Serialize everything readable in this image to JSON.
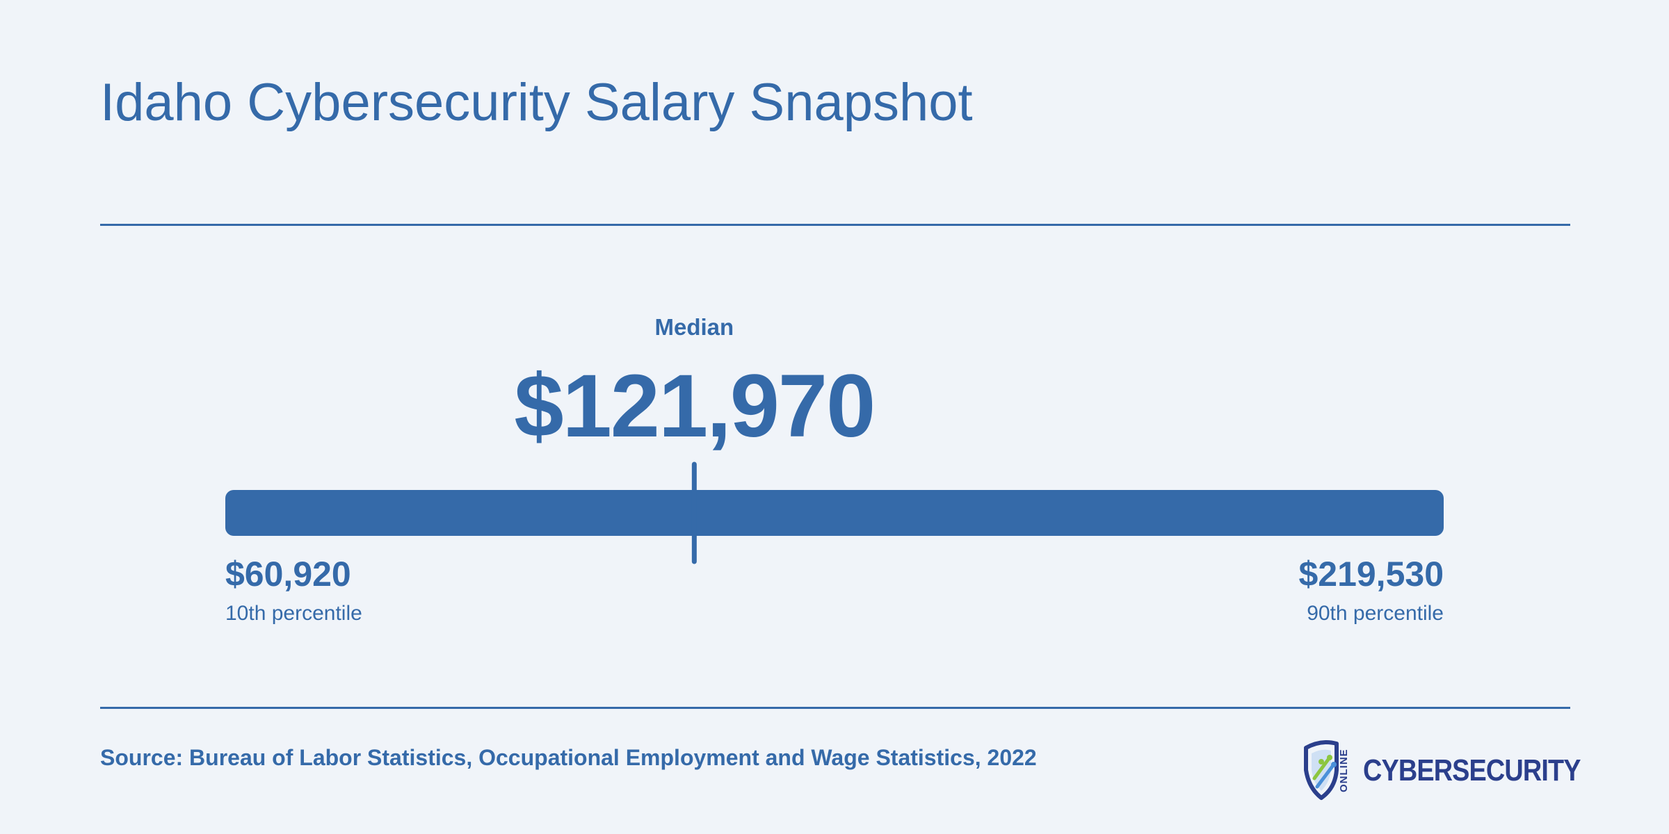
{
  "header": {
    "title": "Idaho Cybersecurity Salary Snapshot"
  },
  "chart_data": {
    "type": "range",
    "title": "Idaho Cybersecurity Salary Snapshot",
    "min": {
      "value": 60920,
      "label": "$60,920",
      "caption": "10th percentile"
    },
    "median": {
      "value": 121970,
      "label": "$121,970",
      "caption": "Median"
    },
    "max": {
      "value": 219530,
      "label": "$219,530",
      "caption": "90th percentile"
    },
    "bar_color": "#356aa9"
  },
  "footer": {
    "source": "Source: Bureau of Labor Statistics, Occupational Employment and Wage Statistics, 2022",
    "logo": {
      "word": "CYBERSECURITY",
      "small": "ONLINE",
      "icon": "shield-circuit-icon"
    }
  },
  "colors": {
    "text": "#356aa9",
    "background": "#f0f4f9",
    "logo_text": "#2b3f8c"
  }
}
